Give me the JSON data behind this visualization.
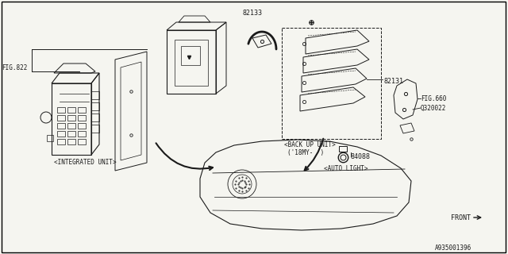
{
  "bg_color": "#f5f5f0",
  "border_color": "#000000",
  "line_color": "#1a1a1a",
  "text_color": "#1a1a1a",
  "fig_size": [
    6.4,
    3.2
  ],
  "dpi": 100,
  "labels": {
    "fig822": "FIG.822",
    "integrated_unit": "<INTEGRATED UNIT>",
    "82133": "82133",
    "82131": "82131",
    "back_up_unit": "<BACK UP UNIT>",
    "18my": "('18MY-  )",
    "84088": "84088",
    "auto_light": "<AUTO LIGHT>",
    "fig660": "FIG.660",
    "q320022": "Q320022",
    "front": "FRONT",
    "part_num": "A935001396"
  }
}
